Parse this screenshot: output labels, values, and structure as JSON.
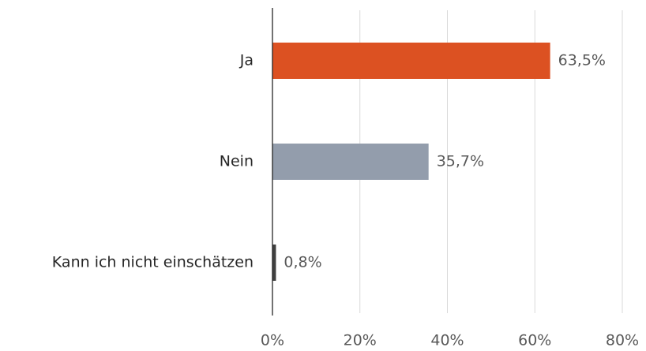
{
  "chart_data": {
    "type": "barh",
    "categories": [
      "Ja",
      "Nein",
      "Kann ich nicht einschätzen"
    ],
    "values": [
      63.5,
      35.7,
      0.8
    ],
    "value_labels": [
      "63,5%",
      "35,7%",
      "0,8%"
    ],
    "colors": [
      "#dc5122",
      "#939dac",
      "#404040"
    ],
    "xlim": [
      0,
      80
    ],
    "xticks": [
      {
        "value": 0,
        "label": "0%"
      },
      {
        "value": 20,
        "label": "20%"
      },
      {
        "value": 40,
        "label": "40%"
      },
      {
        "value": 60,
        "label": "60%"
      },
      {
        "value": 80,
        "label": "80%"
      }
    ],
    "grid": true
  }
}
